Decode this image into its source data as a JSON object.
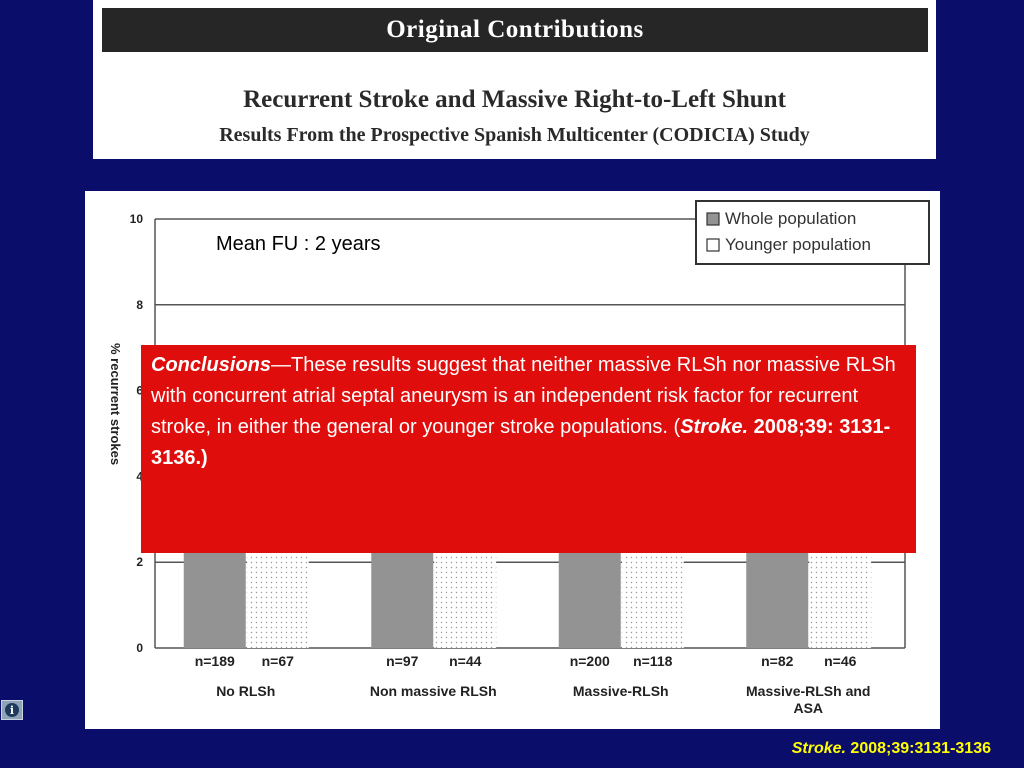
{
  "header": {
    "banner": "Original Contributions",
    "title": "Recurrent Stroke and Massive Right-to-Left Shunt",
    "subtitle": "Results From the Prospective Spanish Multicenter (CODICIA) Study"
  },
  "annotation": "Mean FU : 2 years",
  "conclusions": {
    "label": "Conclusions",
    "text": "—These results suggest that neither massive RLSh nor massive RLSh with concurrent atrial septal aneurysm is an independent risk factor for recurrent stroke, in either the general or younger stroke populations. (",
    "journal": "Stroke.",
    "citation": " 2008;39: 3131-3136.)"
  },
  "footer": {
    "journal": "Stroke.",
    "citation": " 2008;39:3131-3136"
  },
  "chart_data": {
    "type": "bar",
    "ylabel": "% recurrent strokes",
    "ylim": [
      0,
      10
    ],
    "yticks": [
      "0",
      "2",
      "4",
      "6",
      "8",
      "10"
    ],
    "grid": true,
    "legend_position": "top-right",
    "categories": [
      "No RLSh",
      "Non massive RLSh",
      "Massive-RLSh",
      "Massive-RLSh and ASA"
    ],
    "n_labels": [
      [
        "n=189",
        "n=67"
      ],
      [
        "n=97",
        "n=44"
      ],
      [
        "n=200",
        "n=118"
      ],
      [
        "n=82",
        "n=46"
      ]
    ],
    "series": [
      {
        "name": "Whole population",
        "color": "#939393",
        "values": [
          4.5,
          4.5,
          4.5,
          4.5
        ]
      },
      {
        "name": "Younger population",
        "color": "#ffffff",
        "values": [
          4.5,
          4.5,
          4.5,
          4.5
        ]
      }
    ]
  }
}
